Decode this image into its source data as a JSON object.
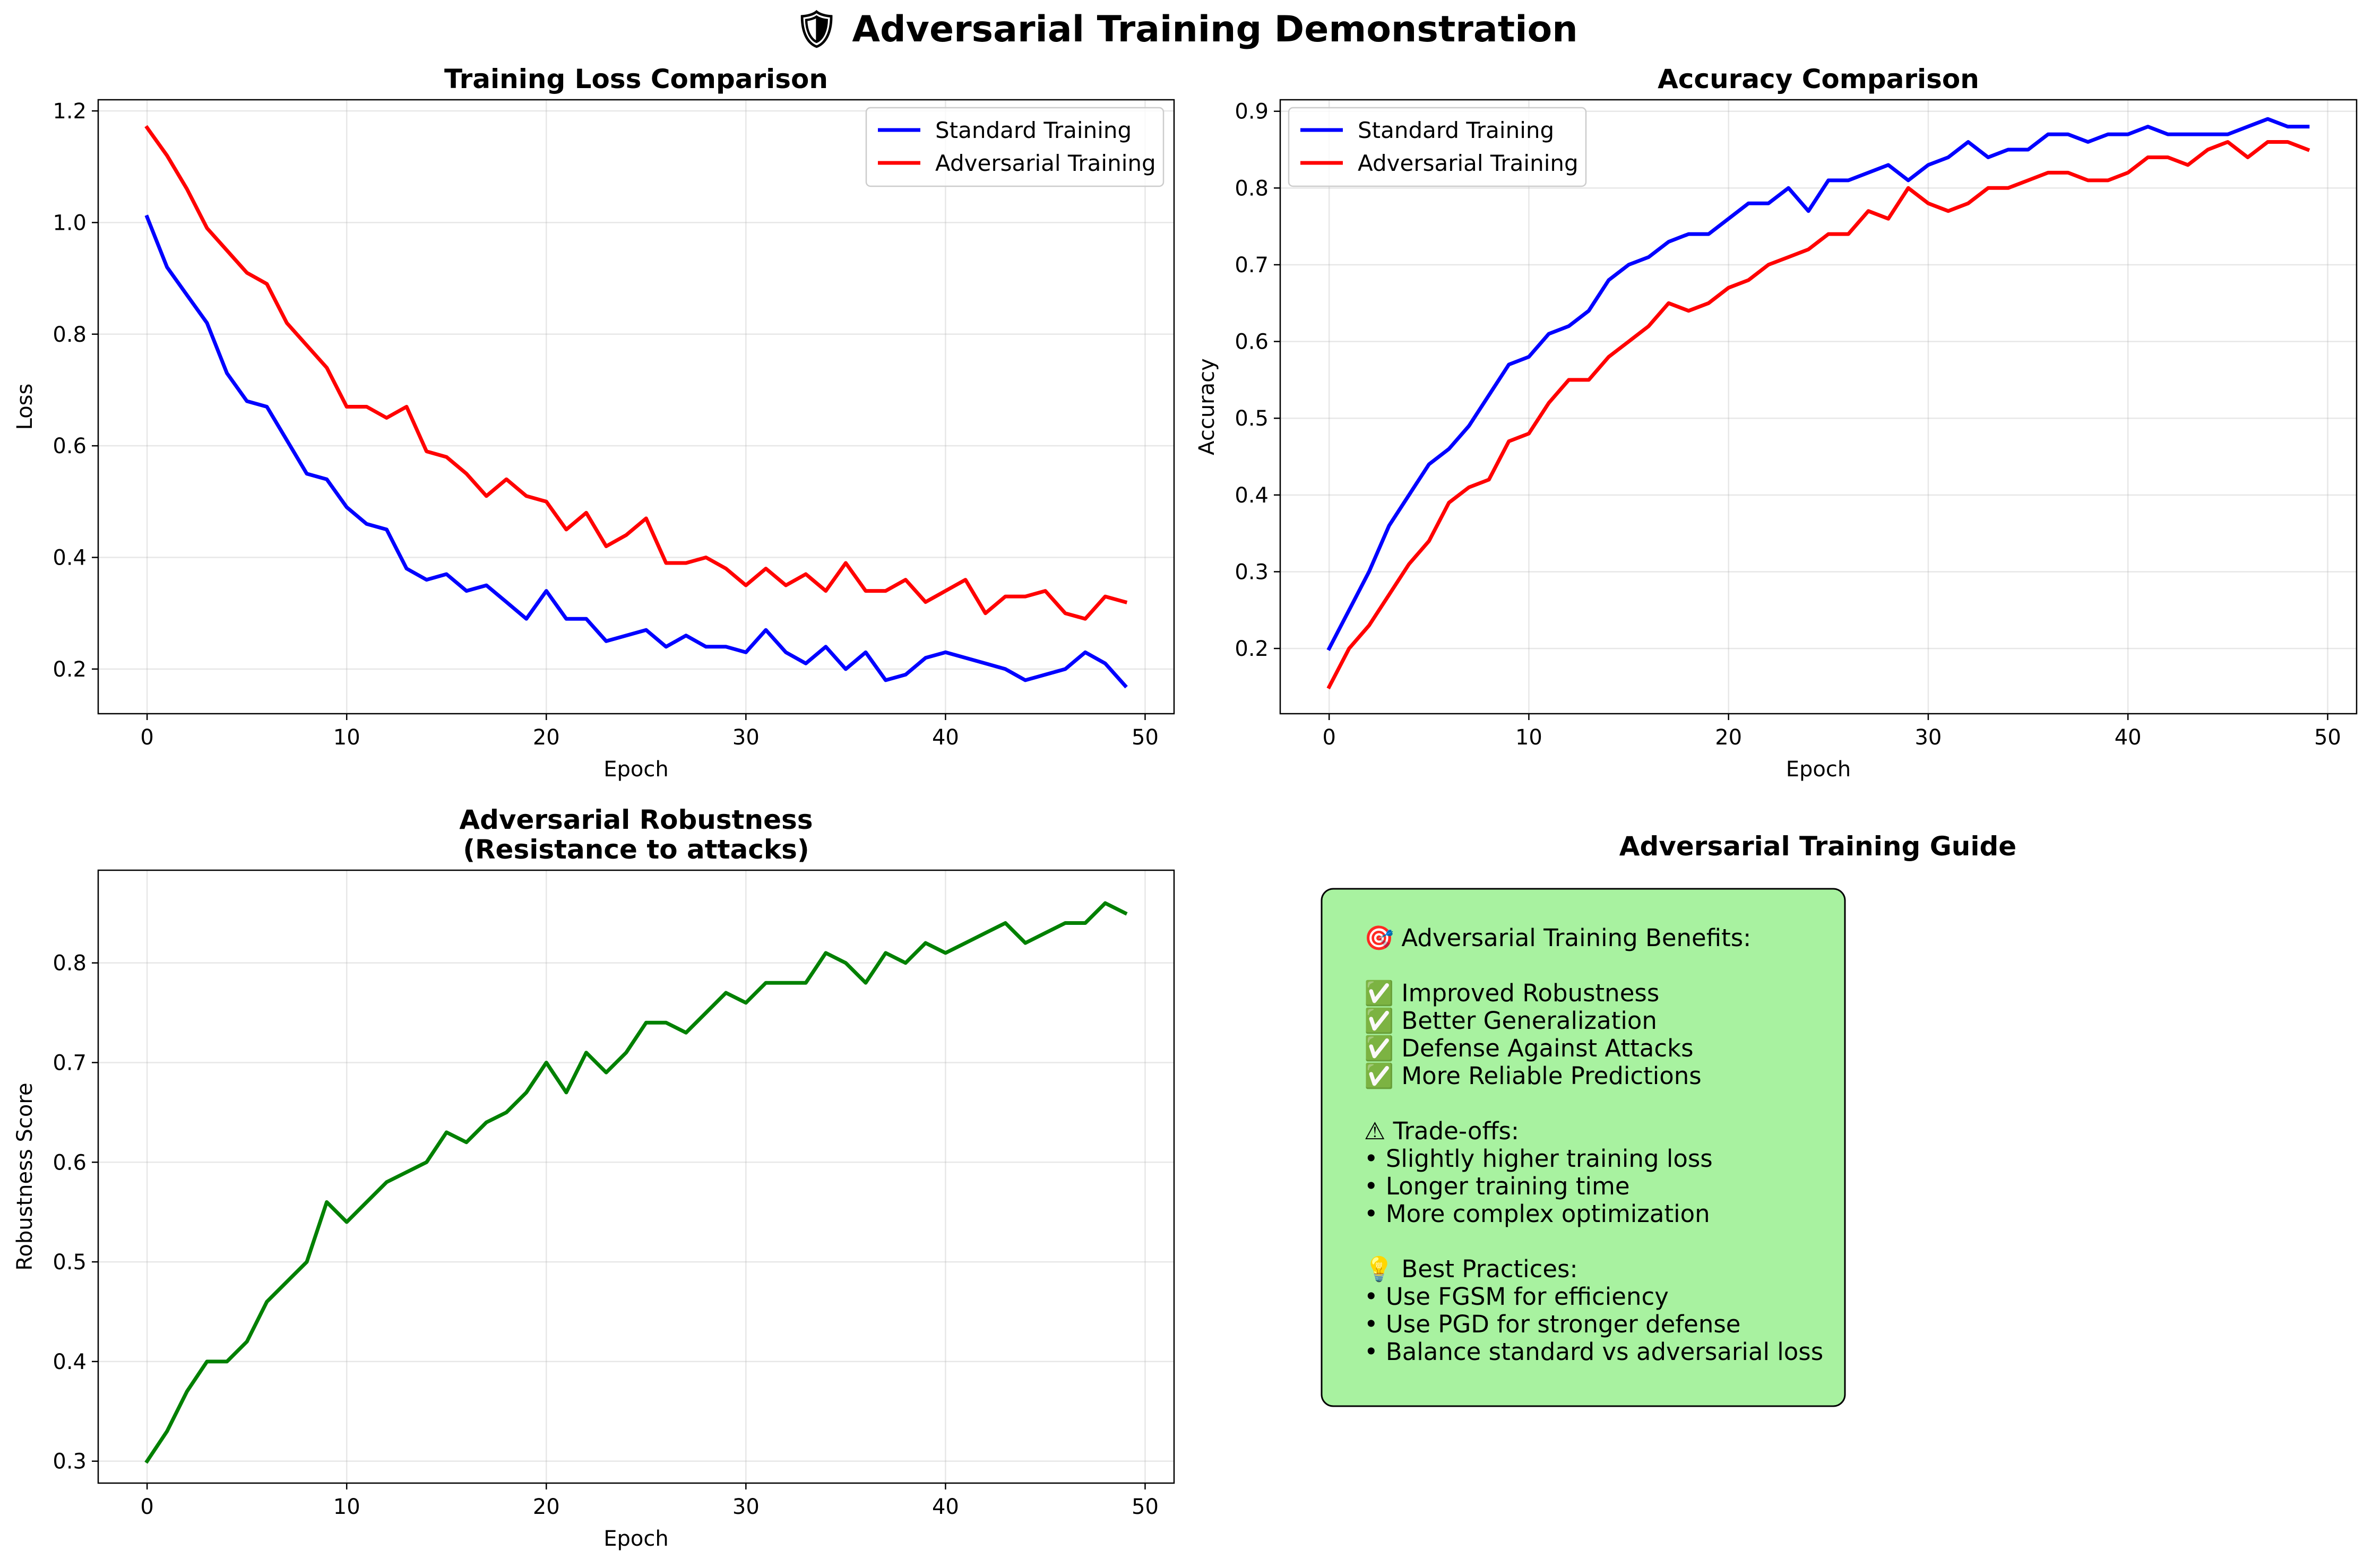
{
  "figure": {
    "suptitle": "🛡 Adversarial Training Demonstration"
  },
  "colors": {
    "standard": "#0000ff",
    "adversarial": "#ff0000",
    "robustness": "#008000",
    "guide_bg": "#a8f2a0",
    "grid": "#b0b0b0"
  },
  "chart_data": [
    {
      "type": "line",
      "title": "Training Loss Comparison",
      "xlabel": "Epoch",
      "ylabel": "Loss",
      "xlim": [
        -2.45,
        51.45
      ],
      "ylim": [
        0.12,
        1.22
      ],
      "xticks": [
        0,
        10,
        20,
        30,
        40,
        50
      ],
      "yticks": [
        0.2,
        0.4,
        0.6,
        0.8,
        1.0,
        1.2
      ],
      "ytick_labels": [
        "0.2",
        "0.4",
        "0.6",
        "0.8",
        "1.0",
        "1.2"
      ],
      "grid": true,
      "legend": "upper right",
      "series": [
        {
          "name": "Standard Training",
          "color": "#0000ff",
          "values": [
            1.01,
            0.92,
            0.87,
            0.82,
            0.73,
            0.68,
            0.67,
            0.61,
            0.55,
            0.54,
            0.49,
            0.46,
            0.45,
            0.38,
            0.36,
            0.37,
            0.34,
            0.35,
            0.32,
            0.29,
            0.34,
            0.29,
            0.29,
            0.25,
            0.26,
            0.27,
            0.24,
            0.26,
            0.24,
            0.24,
            0.23,
            0.27,
            0.23,
            0.21,
            0.24,
            0.2,
            0.23,
            0.18,
            0.19,
            0.22,
            0.23,
            0.22,
            0.21,
            0.2,
            0.18,
            0.19,
            0.2,
            0.23,
            0.21,
            0.17
          ]
        },
        {
          "name": "Adversarial Training",
          "color": "#ff0000",
          "values": [
            1.17,
            1.12,
            1.06,
            0.99,
            0.95,
            0.91,
            0.89,
            0.82,
            0.78,
            0.74,
            0.67,
            0.67,
            0.65,
            0.67,
            0.59,
            0.58,
            0.55,
            0.51,
            0.54,
            0.51,
            0.5,
            0.45,
            0.48,
            0.42,
            0.44,
            0.47,
            0.39,
            0.39,
            0.4,
            0.38,
            0.35,
            0.38,
            0.35,
            0.37,
            0.34,
            0.39,
            0.34,
            0.34,
            0.36,
            0.32,
            0.34,
            0.36,
            0.3,
            0.33,
            0.33,
            0.34,
            0.3,
            0.29,
            0.33,
            0.32
          ]
        }
      ]
    },
    {
      "type": "line",
      "title": "Accuracy Comparison",
      "xlabel": "Epoch",
      "ylabel": "Accuracy",
      "xlim": [
        -2.45,
        51.45
      ],
      "ylim": [
        0.115,
        0.915
      ],
      "xticks": [
        0,
        10,
        20,
        30,
        40,
        50
      ],
      "yticks": [
        0.2,
        0.3,
        0.4,
        0.5,
        0.6,
        0.7,
        0.8,
        0.9
      ],
      "ytick_labels": [
        "0.2",
        "0.3",
        "0.4",
        "0.5",
        "0.6",
        "0.7",
        "0.8",
        "0.9"
      ],
      "grid": true,
      "legend": "upper left",
      "series": [
        {
          "name": "Standard Training",
          "color": "#0000ff",
          "values": [
            0.2,
            0.25,
            0.3,
            0.36,
            0.4,
            0.44,
            0.46,
            0.49,
            0.53,
            0.57,
            0.58,
            0.61,
            0.62,
            0.64,
            0.68,
            0.7,
            0.71,
            0.73,
            0.74,
            0.74,
            0.76,
            0.78,
            0.78,
            0.8,
            0.77,
            0.81,
            0.81,
            0.82,
            0.83,
            0.81,
            0.83,
            0.84,
            0.86,
            0.84,
            0.85,
            0.85,
            0.87,
            0.87,
            0.86,
            0.87,
            0.87,
            0.88,
            0.87,
            0.87,
            0.87,
            0.87,
            0.88,
            0.89,
            0.88,
            0.88
          ]
        },
        {
          "name": "Adversarial Training",
          "color": "#ff0000",
          "values": [
            0.15,
            0.2,
            0.23,
            0.27,
            0.31,
            0.34,
            0.39,
            0.41,
            0.42,
            0.47,
            0.48,
            0.52,
            0.55,
            0.55,
            0.58,
            0.6,
            0.62,
            0.65,
            0.64,
            0.65,
            0.67,
            0.68,
            0.7,
            0.71,
            0.72,
            0.74,
            0.74,
            0.77,
            0.76,
            0.8,
            0.78,
            0.77,
            0.78,
            0.8,
            0.8,
            0.81,
            0.82,
            0.82,
            0.81,
            0.81,
            0.82,
            0.84,
            0.84,
            0.83,
            0.85,
            0.86,
            0.84,
            0.86,
            0.86,
            0.85
          ]
        }
      ]
    },
    {
      "type": "line",
      "title": "Adversarial Robustness\n(Resistance to attacks)",
      "xlabel": "Epoch",
      "ylabel": "Robustness Score",
      "xlim": [
        -2.45,
        51.45
      ],
      "ylim": [
        0.278,
        0.893
      ],
      "xticks": [
        0,
        10,
        20,
        30,
        40,
        50
      ],
      "yticks": [
        0.3,
        0.4,
        0.5,
        0.6,
        0.7,
        0.8
      ],
      "ytick_labels": [
        "0.3",
        "0.4",
        "0.5",
        "0.6",
        "0.7",
        "0.8"
      ],
      "grid": true,
      "legend": "none",
      "series": [
        {
          "color": "#008000",
          "values": [
            0.3,
            0.33,
            0.37,
            0.4,
            0.4,
            0.42,
            0.46,
            0.48,
            0.5,
            0.56,
            0.54,
            0.56,
            0.58,
            0.59,
            0.6,
            0.63,
            0.62,
            0.64,
            0.65,
            0.67,
            0.7,
            0.67,
            0.71,
            0.69,
            0.71,
            0.74,
            0.74,
            0.73,
            0.75,
            0.77,
            0.76,
            0.78,
            0.78,
            0.78,
            0.81,
            0.8,
            0.78,
            0.81,
            0.8,
            0.82,
            0.81,
            0.82,
            0.83,
            0.84,
            0.82,
            0.83,
            0.84,
            0.84,
            0.86,
            0.85
          ]
        }
      ]
    }
  ],
  "guide": {
    "title": "Adversarial Training Guide",
    "lines": [
      "🎯 Adversarial Training Benefits:",
      "",
      "✅ Improved Robustness",
      "✅ Better Generalization",
      "✅ Defense Against Attacks",
      "✅ More Reliable Predictions",
      "",
      "⚠ Trade-offs:",
      "• Slightly higher training loss",
      "• Longer training time",
      "• More complex optimization",
      "",
      "💡 Best Practices:",
      "• Use FGSM for efficiency",
      "• Use PGD for stronger defense",
      "• Balance standard vs adversarial loss"
    ]
  }
}
